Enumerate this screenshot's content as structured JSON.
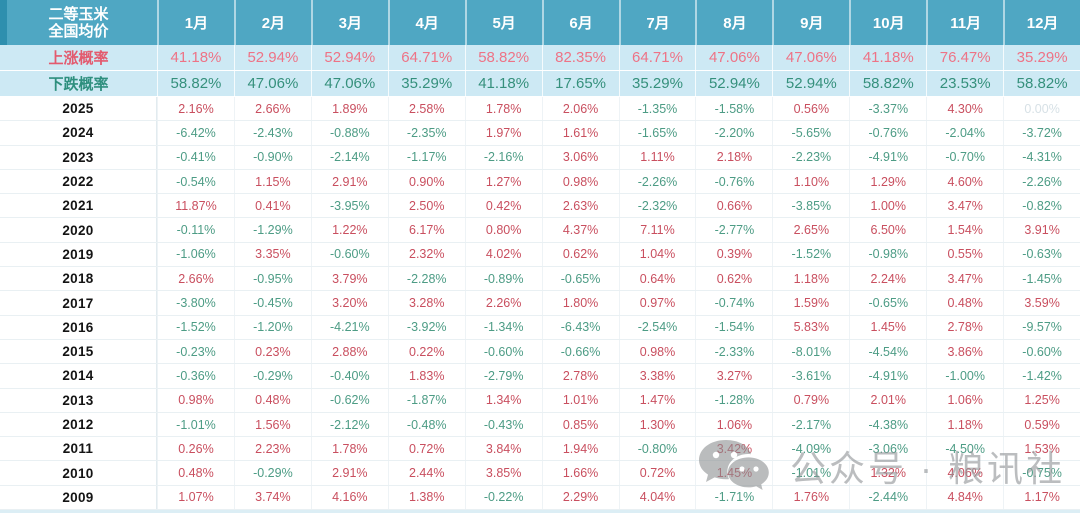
{
  "header": {
    "title_line1": "二等玉米",
    "title_line2": "全国均价"
  },
  "watermark": {
    "text": "公众号 · 粮讯社",
    "icon": "wechat-icon"
  },
  "colors": {
    "header_bg": "#4FA7C3",
    "prob_row_bg": "#CDE9F4",
    "positive_value": "#C94F5F",
    "negative_value": "#4D9C85",
    "zero_value": "#D7E1E6",
    "rise_label": "#E35A6E",
    "fall_label": "#2E8F7E"
  },
  "chart_data": {
    "type": "table",
    "title": "二等玉米全国均价",
    "columns": [
      "1月",
      "2月",
      "3月",
      "4月",
      "5月",
      "6月",
      "7月",
      "8月",
      "9月",
      "10月",
      "11月",
      "12月"
    ],
    "rise_probability": {
      "label": "上涨概率",
      "values": [
        "41.18%",
        "52.94%",
        "52.94%",
        "64.71%",
        "58.82%",
        "82.35%",
        "64.71%",
        "47.06%",
        "47.06%",
        "41.18%",
        "76.47%",
        "35.29%"
      ]
    },
    "fall_probability": {
      "label": "下跌概率",
      "values": [
        "58.82%",
        "47.06%",
        "47.06%",
        "35.29%",
        "41.18%",
        "17.65%",
        "35.29%",
        "52.94%",
        "52.94%",
        "58.82%",
        "23.53%",
        "58.82%"
      ]
    },
    "rows": [
      {
        "year": "2025",
        "values": [
          "2.16%",
          "2.66%",
          "1.89%",
          "2.58%",
          "1.78%",
          "2.06%",
          "-1.35%",
          "-1.58%",
          "0.56%",
          "-3.37%",
          "4.30%",
          "0.00%"
        ]
      },
      {
        "year": "2024",
        "values": [
          "-6.42%",
          "-2.43%",
          "-0.88%",
          "-2.35%",
          "1.97%",
          "1.61%",
          "-1.65%",
          "-2.20%",
          "-5.65%",
          "-0.76%",
          "-2.04%",
          "-3.72%"
        ]
      },
      {
        "year": "2023",
        "values": [
          "-0.41%",
          "-0.90%",
          "-2.14%",
          "-1.17%",
          "-2.16%",
          "3.06%",
          "1.11%",
          "2.18%",
          "-2.23%",
          "-4.91%",
          "-0.70%",
          "-4.31%"
        ]
      },
      {
        "year": "2022",
        "values": [
          "-0.54%",
          "1.15%",
          "2.91%",
          "0.90%",
          "1.27%",
          "0.98%",
          "-2.26%",
          "-0.76%",
          "1.10%",
          "1.29%",
          "4.60%",
          "-2.26%"
        ]
      },
      {
        "year": "2021",
        "values": [
          "11.87%",
          "0.41%",
          "-3.95%",
          "2.50%",
          "0.42%",
          "2.63%",
          "-2.32%",
          "0.66%",
          "-3.85%",
          "1.00%",
          "3.47%",
          "-0.82%"
        ]
      },
      {
        "year": "2020",
        "values": [
          "-0.11%",
          "-1.29%",
          "1.22%",
          "6.17%",
          "0.80%",
          "4.37%",
          "7.11%",
          "-2.77%",
          "2.65%",
          "6.50%",
          "1.54%",
          "3.91%"
        ]
      },
      {
        "year": "2019",
        "values": [
          "-1.06%",
          "3.35%",
          "-0.60%",
          "2.32%",
          "4.02%",
          "0.62%",
          "1.04%",
          "0.39%",
          "-1.52%",
          "-0.98%",
          "0.55%",
          "-0.63%"
        ]
      },
      {
        "year": "2018",
        "values": [
          "2.66%",
          "-0.95%",
          "3.79%",
          "-2.28%",
          "-0.89%",
          "-0.65%",
          "0.64%",
          "0.62%",
          "1.18%",
          "2.24%",
          "3.47%",
          "-1.45%"
        ]
      },
      {
        "year": "2017",
        "values": [
          "-3.80%",
          "-0.45%",
          "3.20%",
          "3.28%",
          "2.26%",
          "1.80%",
          "0.97%",
          "-0.74%",
          "1.59%",
          "-0.65%",
          "0.48%",
          "3.59%"
        ]
      },
      {
        "year": "2016",
        "values": [
          "-1.52%",
          "-1.20%",
          "-4.21%",
          "-3.92%",
          "-1.34%",
          "-6.43%",
          "-2.54%",
          "-1.54%",
          "5.83%",
          "1.45%",
          "2.78%",
          "-9.57%"
        ]
      },
      {
        "year": "2015",
        "values": [
          "-0.23%",
          "0.23%",
          "2.88%",
          "0.22%",
          "-0.60%",
          "-0.66%",
          "0.98%",
          "-2.33%",
          "-8.01%",
          "-4.54%",
          "3.86%",
          "-0.60%"
        ]
      },
      {
        "year": "2014",
        "values": [
          "-0.36%",
          "-0.29%",
          "-0.40%",
          "1.83%",
          "-2.79%",
          "2.78%",
          "3.38%",
          "3.27%",
          "-3.61%",
          "-4.91%",
          "-1.00%",
          "-1.42%"
        ]
      },
      {
        "year": "2013",
        "values": [
          "0.98%",
          "0.48%",
          "-0.62%",
          "-1.87%",
          "1.34%",
          "1.01%",
          "1.47%",
          "-1.28%",
          "0.79%",
          "2.01%",
          "1.06%",
          "1.25%"
        ]
      },
      {
        "year": "2012",
        "values": [
          "-1.01%",
          "1.56%",
          "-2.12%",
          "-0.48%",
          "-0.43%",
          "0.85%",
          "1.30%",
          "1.06%",
          "-2.17%",
          "-4.38%",
          "1.18%",
          "0.59%"
        ]
      },
      {
        "year": "2011",
        "values": [
          "0.26%",
          "2.23%",
          "1.78%",
          "0.72%",
          "3.84%",
          "1.94%",
          "-0.80%",
          "3.42%",
          "-4.09%",
          "-3.06%",
          "-4.50%",
          "1.53%"
        ]
      },
      {
        "year": "2010",
        "values": [
          "0.48%",
          "-0.29%",
          "2.91%",
          "2.44%",
          "3.85%",
          "1.66%",
          "0.72%",
          "1.45%",
          "-1.01%",
          "1.32%",
          "4.06%",
          "-0.75%"
        ]
      },
      {
        "year": "2009",
        "values": [
          "1.07%",
          "3.74%",
          "4.16%",
          "1.38%",
          "-0.22%",
          "2.29%",
          "4.04%",
          "-1.71%",
          "1.76%",
          "-2.44%",
          "4.84%",
          "1.17%"
        ]
      }
    ]
  }
}
